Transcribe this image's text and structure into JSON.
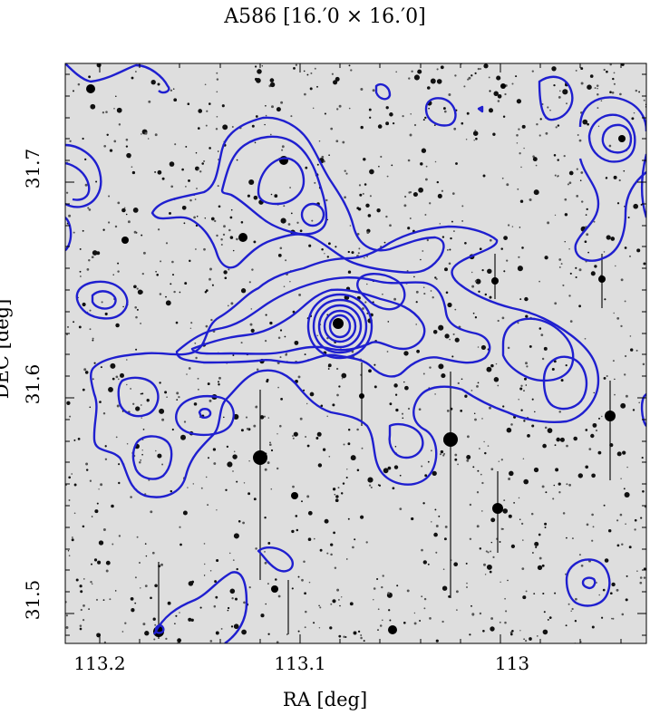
{
  "figure": {
    "title": "A586  [16.′0 × 16.′0]",
    "xlabel": "RA [deg]",
    "ylabel": "DEC [deg]",
    "x_ticks": [
      "113.2",
      "113.1",
      "113"
    ],
    "y_ticks": [
      "31.7",
      "31.6",
      "31.5"
    ],
    "contour_color": "#1f1fcf",
    "image_background": "#dedede"
  }
}
